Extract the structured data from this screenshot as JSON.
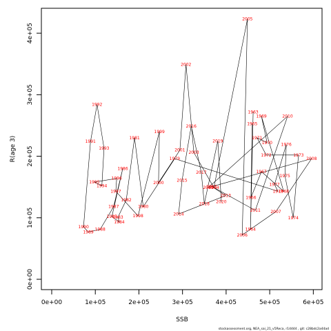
{
  "chart_data": {
    "type": "scatter",
    "connected": true,
    "xlabel": "SSB",
    "ylabel": "R(age 3)",
    "footnote": "stockassessment.org, NEA_sai_21_v5Reca, r14444 , git: c28bdc2a44ad",
    "line_color": "#000000",
    "label_color": "#ff0000",
    "labels": [
      "1963",
      "1964",
      "1965",
      "1966",
      "1967",
      "1968",
      "1969",
      "1970",
      "1971",
      "1972",
      "1973",
      "1974",
      "1975",
      "1976",
      "1977",
      "1978",
      "1979",
      "1980",
      "1981",
      "1982",
      "1983",
      "1984",
      "1985",
      "1986",
      "1987",
      "1988",
      "1989",
      "1990",
      "1991",
      "1992",
      "1993",
      "1994",
      "1995",
      "1996",
      "1997",
      "1998",
      "1999",
      "2000",
      "2001",
      "2002",
      "2003",
      "2004",
      "2005",
      "2006",
      "2007",
      "2008",
      "2009",
      "2010",
      "2011",
      "2012",
      "2013",
      "2014",
      "2015",
      "2016",
      "2017",
      "2018",
      "2019",
      "2020"
    ],
    "x": [
      462000,
      456000,
      460000,
      457000,
      481000,
      532000,
      481000,
      494000,
      471000,
      492000,
      566000,
      554000,
      535000,
      538000,
      511000,
      519000,
      282000,
      210000,
      190000,
      171000,
      152000,
      155000,
      138000,
      163000,
      142000,
      111000,
      84000,
      73000,
      89000,
      104000,
      120000,
      115000,
      98000,
      149000,
      147000,
      198000,
      247000,
      245000,
      294000,
      308000,
      326000,
      372000,
      449000,
      437000,
      514000,
      596000,
      359000,
      541000,
      467000,
      367000,
      399000,
      291000,
      299000,
      320000,
      343000,
      350000,
      381000,
      389000
    ],
    "values": [
      272000,
      81000,
      253000,
      133000,
      175000,
      143000,
      265000,
      222000,
      230000,
      202000,
      202000,
      100000,
      168000,
      219000,
      154000,
      143000,
      196000,
      118000,
      230000,
      129000,
      101000,
      93000,
      102000,
      180000,
      118000,
      81000,
      77000,
      85000,
      224000,
      284000,
      213000,
      152000,
      158000,
      164000,
      143000,
      103000,
      240000,
      157000,
      210000,
      349000,
      206000,
      149000,
      423000,
      72000,
      110000,
      196000,
      149000,
      265000,
      112000,
      151000,
      136000,
      106000,
      161000,
      249000,
      174000,
      123000,
      225000,
      126000
    ],
    "xlim": [
      -23700,
      620000
    ],
    "ylim": [
      -16800,
      440500
    ],
    "xticks": [
      {
        "value": 0,
        "label": "0e+00"
      },
      {
        "value": 100000,
        "label": "1e+05"
      },
      {
        "value": 200000,
        "label": "2e+05"
      },
      {
        "value": 300000,
        "label": "3e+05"
      },
      {
        "value": 400000,
        "label": "4e+05"
      },
      {
        "value": 500000,
        "label": "5e+05"
      },
      {
        "value": 600000,
        "label": "6e+05"
      }
    ],
    "yticks": [
      {
        "value": 0,
        "label": "0e+00"
      },
      {
        "value": 100000,
        "label": "1e+05"
      },
      {
        "value": 200000,
        "label": "2e+05"
      },
      {
        "value": 300000,
        "label": "3e+05"
      },
      {
        "value": 400000,
        "label": "4e+05"
      }
    ]
  }
}
